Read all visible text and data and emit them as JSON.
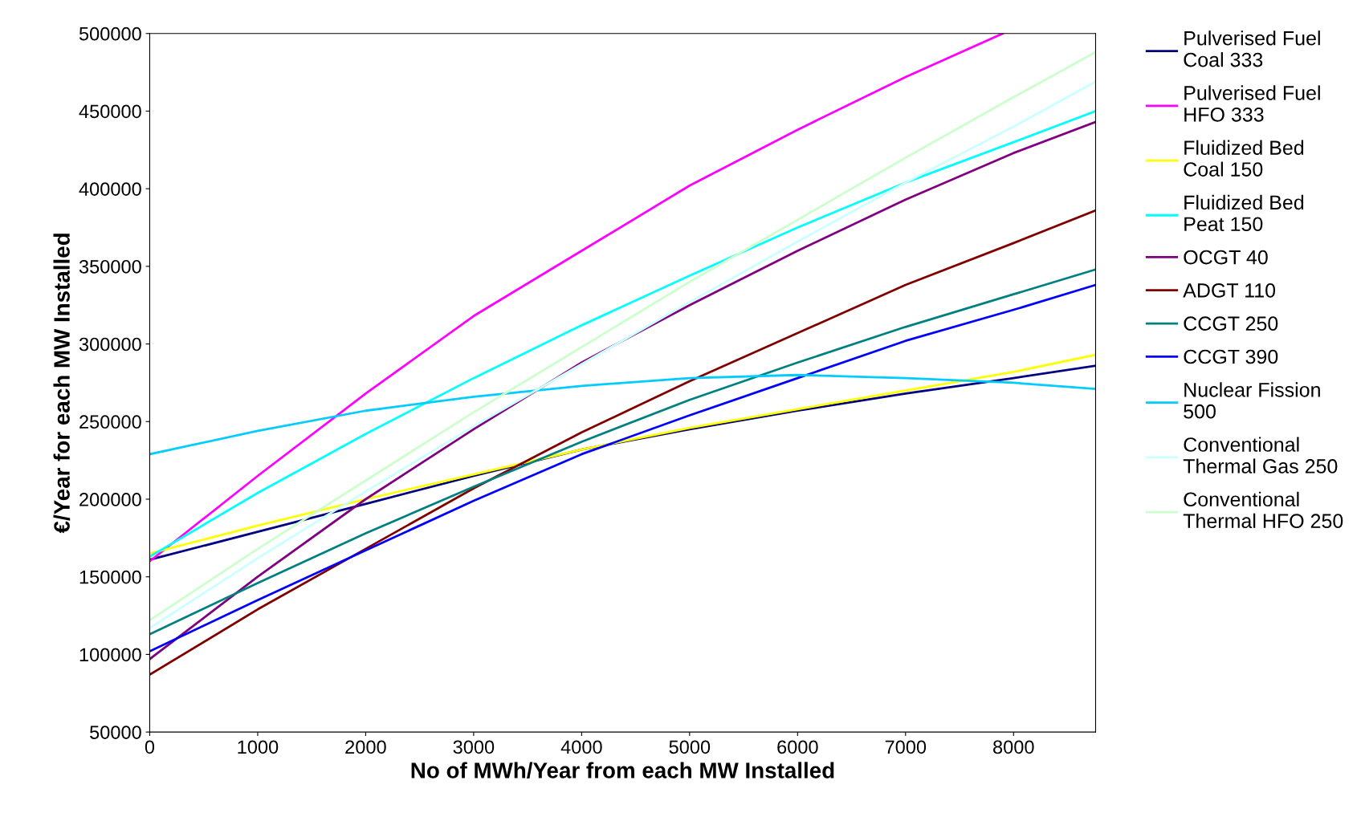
{
  "chart_data": {
    "type": "line",
    "xlabel": "No of MWh/Year from each MW Installed",
    "ylabel": "€/Year for each MW Installed",
    "x": [
      0,
      1000,
      2000,
      3000,
      4000,
      5000,
      6000,
      7000,
      8000,
      8760
    ],
    "xlim": [
      0,
      8760
    ],
    "xticks": [
      0,
      1000,
      2000,
      3000,
      4000,
      5000,
      6000,
      7000,
      8000
    ],
    "ylim": [
      50000,
      500000
    ],
    "yticks": [
      50000,
      100000,
      150000,
      200000,
      250000,
      300000,
      350000,
      400000,
      450000,
      500000
    ],
    "grid": false,
    "legend": "right",
    "marker": "none",
    "line_style": "solid",
    "series": [
      {
        "name": "Pulverised Fuel\nCoal 333",
        "color": "#000080",
        "values": [
          161000,
          179000,
          197000,
          215000,
          232000,
          245000,
          257000,
          268000,
          278000,
          286000
        ]
      },
      {
        "name": "Pulverised Fuel\nHFO 333",
        "color": "#ff00ff",
        "x": [
          0,
          1000,
          2000,
          3000,
          4000,
          5000,
          6000,
          7000,
          7900
        ],
        "values": [
          160000,
          215000,
          268000,
          318000,
          360000,
          402000,
          438000,
          472000,
          500000
        ]
      },
      {
        "name": "Fluidized Bed\nCoal 150",
        "color": "#ffff00",
        "values": [
          165000,
          183000,
          200000,
          216000,
          232000,
          246000,
          258000,
          270000,
          282000,
          293000
        ]
      },
      {
        "name": "Fluidized Bed\nPeat 150",
        "color": "#00ffff",
        "values": [
          163000,
          204000,
          242000,
          278000,
          312000,
          344000,
          375000,
          404000,
          430000,
          450000
        ]
      },
      {
        "name": "OCGT 40",
        "color": "#800080",
        "values": [
          97000,
          150000,
          200000,
          245000,
          288000,
          325000,
          360000,
          393000,
          423000,
          443000
        ]
      },
      {
        "name": "ADGT 110",
        "color": "#800000",
        "values": [
          87000,
          129000,
          168000,
          207000,
          243000,
          276000,
          307000,
          338000,
          365000,
          386000
        ]
      },
      {
        "name": "CCGT 250",
        "color": "#008080",
        "values": [
          113000,
          146000,
          178000,
          208000,
          237000,
          264000,
          288000,
          311000,
          332000,
          348000
        ]
      },
      {
        "name": "CCGT 390",
        "color": "#0000ff",
        "values": [
          102000,
          135000,
          167000,
          199000,
          229000,
          254000,
          278000,
          302000,
          322000,
          338000
        ]
      },
      {
        "name": "Nuclear Fission\n500",
        "color": "#00ccff",
        "values": [
          229000,
          244000,
          257000,
          266000,
          273000,
          278000,
          280000,
          278000,
          275000,
          271000
        ]
      },
      {
        "name": "Conventional\nThermal Gas 250",
        "color": "#ccffff",
        "values": [
          117000,
          162000,
          205000,
          247000,
          287000,
          327000,
          366000,
          404000,
          440000,
          469000
        ]
      },
      {
        "name": "Conventional\nThermal HFO 250",
        "color": "#ccffcc",
        "values": [
          122000,
          168000,
          212000,
          256000,
          298000,
          340000,
          380000,
          420000,
          459000,
          488000
        ]
      }
    ]
  }
}
